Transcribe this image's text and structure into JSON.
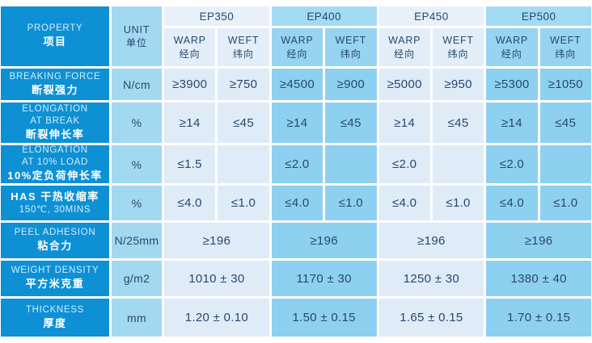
{
  "chart_data": {
    "type": "table",
    "title": "Product property specification table",
    "columns": [
      "PROPERTY 项目",
      "UNIT 单位",
      "EP350",
      "EP400",
      "EP450",
      "EP500"
    ],
    "subcolumns_per_group": [
      "WARP 经向",
      "WEFT 纬向"
    ],
    "header": {
      "property_en": "PROPERTY",
      "property_zh": "项目",
      "unit_en": "UNIT",
      "unit_zh": "单位",
      "groups": [
        "EP350",
        "EP400",
        "EP450",
        "EP500"
      ],
      "warp_en": "WARP",
      "warp_zh": "经向",
      "weft_en": "WEFT",
      "weft_zh": "纬向"
    },
    "rows": [
      {
        "line1": "BREAKING FORCE",
        "line2": "断裂强力",
        "unit": "N/cm",
        "values": [
          "≥3900",
          "≥750",
          "≥4500",
          "≥900",
          "≥5000",
          "≥950",
          "≥5300",
          "≥1050"
        ]
      },
      {
        "line1": "ELONGATION\nAT BREAK",
        "line2": "断裂伸长率",
        "unit": "%",
        "values": [
          "≥14",
          "≤45",
          "≥14",
          "≤45",
          "≥14",
          "≤45",
          "≥14",
          "≤45"
        ]
      },
      {
        "line1": "ELONGATION\nAT 10% LOAD",
        "line2": "10%定负荷伸长率",
        "unit": "%",
        "values": [
          "≤1.5",
          "",
          "≤2.0",
          "",
          "≤2.0",
          "",
          "≤2.0",
          ""
        ]
      },
      {
        "line1": "HAS 干热收缩率",
        "line2": "150℃, 30MINS",
        "unit": "%",
        "values": [
          "≤4.0",
          "≤1.0",
          "≤4.0",
          "≤1.0",
          "≤4.0",
          "≤1.0",
          "≤4.0",
          "≤1.0"
        ]
      },
      {
        "line1": "PEEL ADHESION",
        "line2": "粘合力",
        "unit": "N/25mm",
        "merged": true,
        "values": [
          "≥196",
          "≥196",
          "≥196",
          "≥196"
        ]
      },
      {
        "line1": "WEIGHT DENSITY",
        "line2": "平方米克重",
        "unit": "g/m2",
        "merged": true,
        "values": [
          "1010 ± 30",
          "1170 ± 30",
          "1250 ± 30",
          "1380 ± 40"
        ]
      },
      {
        "line1": "THICKNESS",
        "line2": "厚度",
        "unit": "mm",
        "merged": true,
        "values": [
          "1.20 ± 0.10",
          "1.50 ± 0.15",
          "1.65 ± 0.15",
          "1.70 ± 0.15"
        ]
      }
    ],
    "colors": {
      "label_blue": "#0e90d4",
      "unit_column_blue": "#a3d8f1",
      "light_group_bg": "#dfebf7",
      "mid_group_bg": "#8ed0ef",
      "grid_line": "#ffffff",
      "value_text": "#27496e",
      "label_text_en": "#d4ecfb",
      "label_text_zh": "#ffffff"
    }
  }
}
